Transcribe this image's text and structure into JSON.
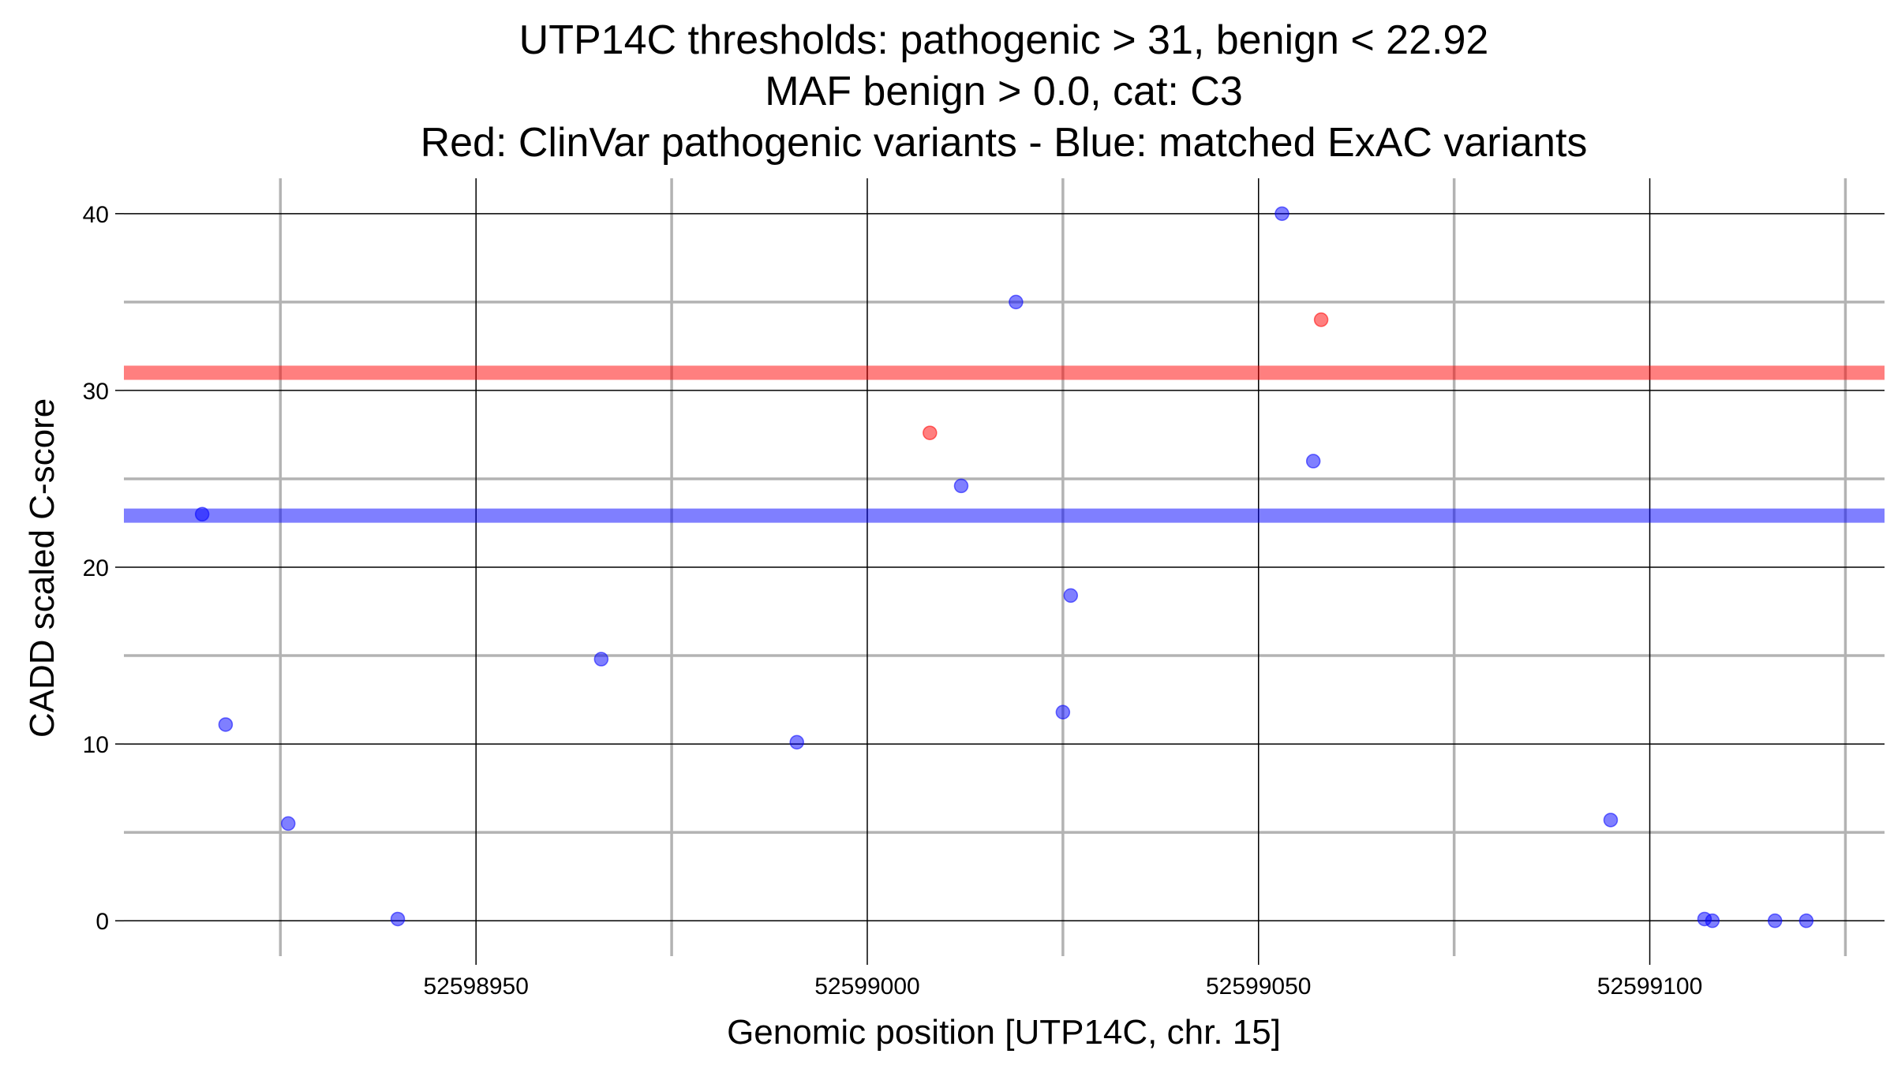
{
  "chart_data": {
    "type": "scatter",
    "title_lines": [
      "UTP14C thresholds: pathogenic > 31, benign < 22.92",
      "MAF benign > 0.0, cat: C3",
      "Red: ClinVar pathogenic variants - Blue: matched ExAC variants"
    ],
    "xlabel": "Genomic position [UTP14C, chr. 15]",
    "ylabel": "CADD scaled C-score",
    "xlim": [
      52598905,
      52599130
    ],
    "ylim": [
      -2,
      42
    ],
    "x_major_ticks": [
      52598950,
      52599000,
      52599050,
      52599100
    ],
    "x_tick_labels": [
      "52598950",
      "52599000",
      "52599050",
      "52599100"
    ],
    "x_minor_gridlines": [
      52598925,
      52598975,
      52599025,
      52599075,
      52599125
    ],
    "y_major_ticks": [
      0,
      10,
      20,
      30,
      40
    ],
    "y_tick_labels": [
      "0",
      "10",
      "20",
      "30",
      "40"
    ],
    "y_minor_gridlines": [
      5,
      15,
      25,
      35
    ],
    "grid": true,
    "thresholds": [
      {
        "name": "pathogenic",
        "value": 31,
        "color": "#ff0000"
      },
      {
        "name": "benign",
        "value": 22.92,
        "color": "#0000ff"
      }
    ],
    "series": [
      {
        "color": "#ff0000",
        "points": [
          {
            "x": 52599008,
            "y": 27.6
          },
          {
            "x": 52599058,
            "y": 34.0
          }
        ]
      },
      {
        "color": "#0000ff",
        "points": [
          {
            "x": 52598915,
            "y": 23.0
          },
          {
            "x": 52598918,
            "y": 11.1
          },
          {
            "x": 52598926,
            "y": 5.5
          },
          {
            "x": 52598940,
            "y": 0.1
          },
          {
            "x": 52598966,
            "y": 14.8
          },
          {
            "x": 52598991,
            "y": 10.1
          },
          {
            "x": 52599012,
            "y": 24.6
          },
          {
            "x": 52599019,
            "y": 35.0
          },
          {
            "x": 52599025,
            "y": 11.8
          },
          {
            "x": 52599026,
            "y": 18.4
          },
          {
            "x": 52599053,
            "y": 40.0
          },
          {
            "x": 52599057,
            "y": 26.0
          },
          {
            "x": 52599095,
            "y": 5.7
          },
          {
            "x": 52599107,
            "y": 0.1
          },
          {
            "x": 52599108,
            "y": 0.0
          },
          {
            "x": 52599116,
            "y": 0.0
          },
          {
            "x": 52599120,
            "y": 0.0
          }
        ]
      }
    ]
  }
}
